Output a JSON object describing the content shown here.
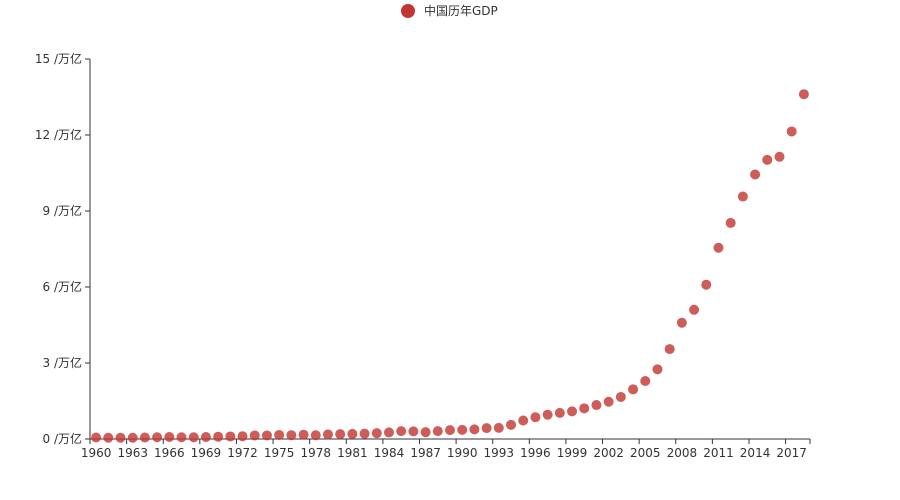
{
  "chart_data": {
    "type": "scatter",
    "title": "",
    "xlabel": "",
    "ylabel": "",
    "y_unit": "/万亿",
    "ylim": [
      0,
      15
    ],
    "y_ticks": [
      0,
      3,
      6,
      9,
      12,
      15
    ],
    "x_tick_labels": [
      "1960",
      "1963",
      "1966",
      "1969",
      "1972",
      "1975",
      "1978",
      "1981",
      "1984",
      "1987",
      "1990",
      "1993",
      "1996",
      "1999",
      "2002",
      "2005",
      "2008",
      "2011",
      "2014",
      "2017"
    ],
    "grid": false,
    "legend_position": "top-center",
    "colors": {
      "marker": "#c23531",
      "axis": "#333333",
      "text": "#333333"
    },
    "series": [
      {
        "name": "中国历年GDP",
        "x": [
          1960,
          1961,
          1962,
          1963,
          1964,
          1965,
          1966,
          1967,
          1968,
          1969,
          1970,
          1971,
          1972,
          1973,
          1974,
          1975,
          1976,
          1977,
          1978,
          1979,
          1980,
          1981,
          1982,
          1983,
          1984,
          1985,
          1986,
          1987,
          1988,
          1989,
          1990,
          1991,
          1992,
          1993,
          1994,
          1995,
          1996,
          1997,
          1998,
          1999,
          2000,
          2001,
          2002,
          2003,
          2004,
          2005,
          2006,
          2007,
          2008,
          2009,
          2010,
          2011,
          2012,
          2013,
          2014,
          2015,
          2016,
          2017,
          2018
        ],
        "values": [
          0.06,
          0.05,
          0.05,
          0.05,
          0.06,
          0.07,
          0.08,
          0.07,
          0.07,
          0.08,
          0.09,
          0.1,
          0.11,
          0.14,
          0.14,
          0.16,
          0.15,
          0.17,
          0.15,
          0.18,
          0.19,
          0.2,
          0.21,
          0.23,
          0.26,
          0.31,
          0.3,
          0.27,
          0.31,
          0.35,
          0.36,
          0.38,
          0.43,
          0.44,
          0.56,
          0.73,
          0.86,
          0.96,
          1.03,
          1.09,
          1.21,
          1.34,
          1.47,
          1.66,
          1.96,
          2.29,
          2.75,
          3.55,
          4.59,
          5.1,
          6.09,
          7.55,
          8.53,
          9.57,
          10.44,
          11.02,
          11.14,
          12.14,
          13.61
        ]
      }
    ]
  }
}
